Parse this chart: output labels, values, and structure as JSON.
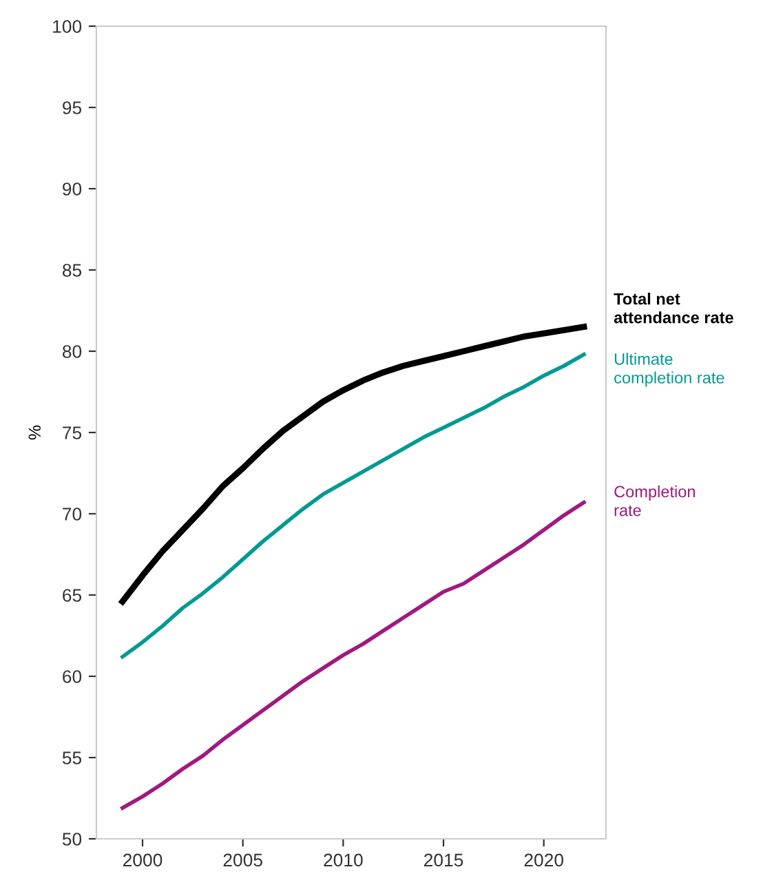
{
  "chart_data": {
    "type": "line",
    "ylabel": "%",
    "x": [
      1999,
      2000,
      2001,
      2002,
      2003,
      2004,
      2005,
      2006,
      2007,
      2008,
      2009,
      2010,
      2011,
      2012,
      2013,
      2014,
      2015,
      2016,
      2017,
      2018,
      2019,
      2020,
      2021,
      2022
    ],
    "series": [
      {
        "name": "Total net attendance rate",
        "color": "#000000",
        "values": [
          64.6,
          66.2,
          67.7,
          69.0,
          70.3,
          71.7,
          72.8,
          74.0,
          75.1,
          76.0,
          76.9,
          77.6,
          78.2,
          78.7,
          79.1,
          79.4,
          79.7,
          80.0,
          80.3,
          80.6,
          80.9,
          81.1,
          81.3,
          81.5
        ]
      },
      {
        "name": "Ultimate completion rate",
        "color": "#009a93",
        "values": [
          61.2,
          62.1,
          63.1,
          64.2,
          65.1,
          66.1,
          67.2,
          68.3,
          69.3,
          70.3,
          71.2,
          71.9,
          72.6,
          73.3,
          74.0,
          74.7,
          75.3,
          75.9,
          76.5,
          77.2,
          77.8,
          78.5,
          79.1,
          79.8
        ]
      },
      {
        "name": "Completion rate",
        "color": "#a0197f",
        "values": [
          51.9,
          52.6,
          53.4,
          54.3,
          55.1,
          56.1,
          57.0,
          57.9,
          58.8,
          59.7,
          60.5,
          61.3,
          62.0,
          62.8,
          63.6,
          64.4,
          65.2,
          65.7,
          66.5,
          67.3,
          68.1,
          69.0,
          69.9,
          70.7
        ]
      }
    ],
    "xlim": [
      1997.7,
      2023.1
    ],
    "ylim": [
      50,
      100
    ],
    "xticks": [
      2000,
      2005,
      2010,
      2015,
      2020
    ],
    "yticks": [
      50,
      55,
      60,
      65,
      70,
      75,
      80,
      85,
      90,
      95,
      100
    ],
    "grid": false,
    "legend": false,
    "marker": "none",
    "line_style": "solid"
  }
}
